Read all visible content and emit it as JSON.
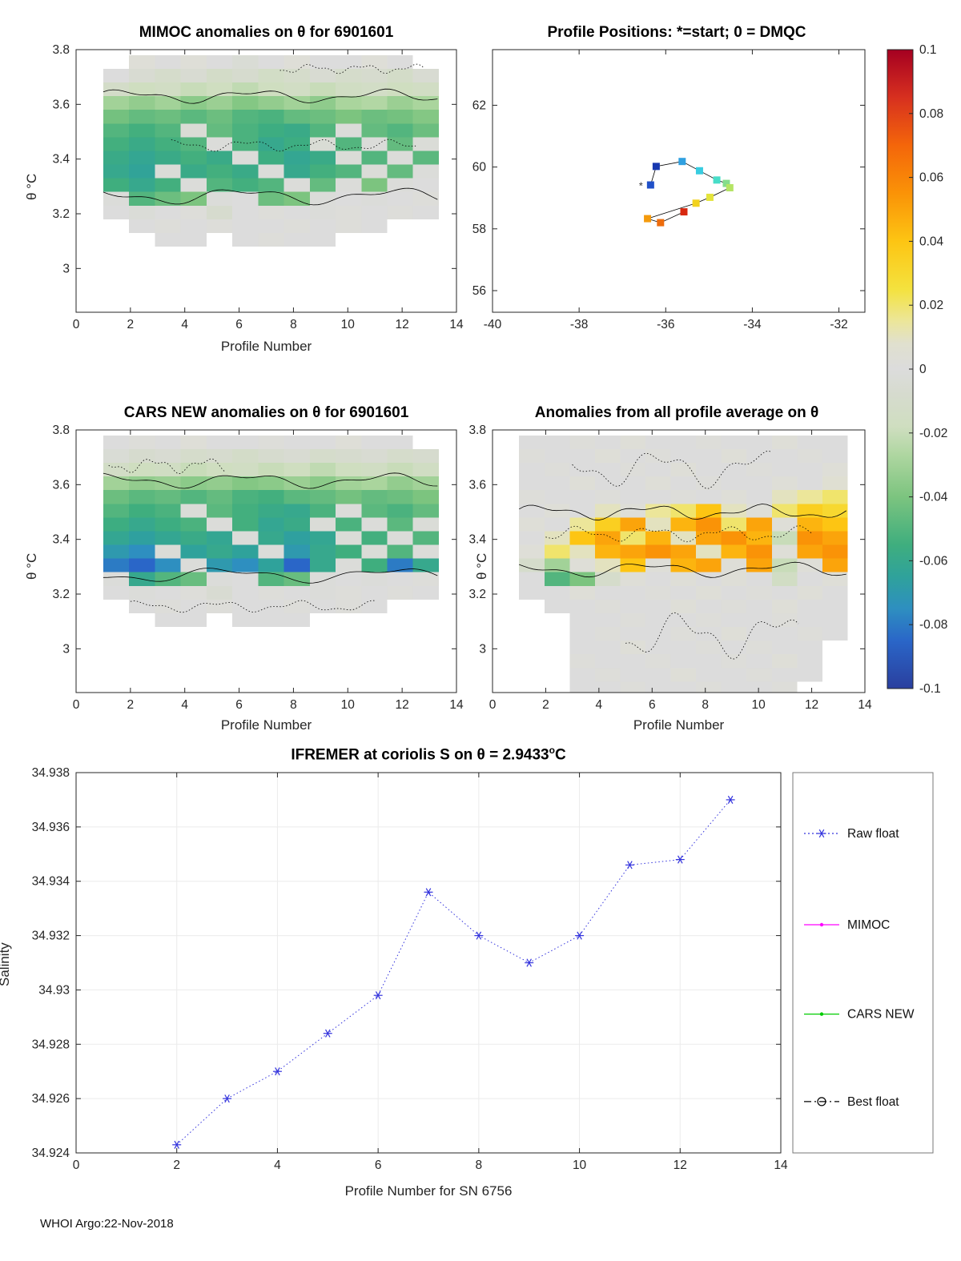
{
  "page": {
    "footer": "WHOI Argo:22-Nov-2018"
  },
  "colorbar": {
    "min": -0.1,
    "max": 0.1,
    "tick_values": [
      0.1,
      0.08,
      0.06,
      0.04,
      0.02,
      0,
      -0.02,
      -0.04,
      -0.06,
      -0.08,
      -0.1
    ],
    "tick_labels": [
      "0.1",
      "0.08",
      "0.06",
      "0.04",
      "0.02",
      "0",
      "-0.02",
      "-0.04",
      "-0.06",
      "-0.08",
      "-0.1"
    ],
    "stops": [
      [
        -0.1,
        "#2a3f9e"
      ],
      [
        -0.085,
        "#2a66c8"
      ],
      [
        -0.075,
        "#2e8fc0"
      ],
      [
        -0.065,
        "#2fa29b"
      ],
      [
        -0.055,
        "#3fae7e"
      ],
      [
        -0.04,
        "#7cc47f"
      ],
      [
        -0.027,
        "#aed6a0"
      ],
      [
        -0.018,
        "#cfdec0"
      ],
      [
        -0.008,
        "#d6dbce"
      ],
      [
        0,
        "#dcdcdc"
      ],
      [
        0.008,
        "#e0e0ce"
      ],
      [
        0.015,
        "#ece69a"
      ],
      [
        0.025,
        "#f4e23e"
      ],
      [
        0.04,
        "#fdc513"
      ],
      [
        0.055,
        "#fa9307"
      ],
      [
        0.07,
        "#f4660a"
      ],
      [
        0.085,
        "#d7301f"
      ],
      [
        0.1,
        "#a50021"
      ]
    ]
  },
  "chart_data": [
    {
      "id": "mimoc",
      "type": "heatmap",
      "title": "MIMOC anomalies on θ  for 6901601",
      "xlabel": "Profile Number",
      "ylabel": "θ °C",
      "xlim": [
        0,
        14
      ],
      "ylim": [
        2.84,
        3.8
      ],
      "xticks": [
        0,
        2,
        4,
        6,
        8,
        10,
        12,
        14
      ],
      "xticklabels": [
        "0",
        "2",
        "4",
        "6",
        "8",
        "10",
        "12",
        "14"
      ],
      "yticks": [
        3,
        3.2,
        3.4,
        3.6,
        3.8
      ],
      "yticklabels": [
        "3",
        "3.2",
        "3.4",
        "3.6",
        "3.8"
      ],
      "y_top": 3.78,
      "cell_h": 0.05,
      "x_start": 1.0,
      "cell_w": 0.95,
      "values": [
        [
          null,
          0.003,
          0,
          0.003,
          0,
          -0.004,
          0,
          0.003,
          0,
          0,
          0.003,
          0,
          null
        ],
        [
          0,
          -0.006,
          -0.01,
          -0.006,
          -0.012,
          -0.008,
          -0.014,
          -0.01,
          -0.006,
          -0.01,
          -0.008,
          -0.012,
          -0.006
        ],
        [
          -0.012,
          -0.018,
          -0.015,
          -0.02,
          -0.018,
          -0.022,
          -0.018,
          -0.015,
          -0.02,
          -0.016,
          -0.014,
          -0.018,
          -0.015
        ],
        [
          -0.03,
          -0.034,
          -0.03,
          -0.036,
          -0.032,
          -0.038,
          -0.034,
          -0.03,
          -0.035,
          -0.028,
          -0.026,
          -0.032,
          -0.028
        ],
        [
          -0.042,
          -0.046,
          -0.044,
          -0.048,
          -0.044,
          -0.05,
          -0.052,
          -0.046,
          -0.044,
          -0.04,
          -0.044,
          -0.042,
          -0.038
        ],
        [
          -0.05,
          -0.054,
          -0.05,
          -0.004,
          -0.046,
          -0.052,
          -0.056,
          -0.058,
          -0.05,
          -0.002,
          -0.046,
          -0.05,
          -0.044
        ],
        [
          -0.054,
          -0.058,
          -0.054,
          -0.05,
          -0.002,
          -0.052,
          -0.06,
          -0.056,
          -0.004,
          -0.05,
          -0.002,
          -0.046,
          -0.003
        ],
        [
          -0.058,
          -0.062,
          -0.058,
          -0.054,
          -0.058,
          -0.002,
          -0.056,
          -0.062,
          -0.058,
          -0.003,
          -0.05,
          -0.002,
          -0.048
        ],
        [
          -0.06,
          -0.064,
          -0.003,
          -0.058,
          -0.054,
          -0.058,
          -0.002,
          -0.06,
          -0.054,
          -0.05,
          -0.003,
          -0.046,
          -0.002
        ],
        [
          -0.055,
          -0.06,
          -0.054,
          -0.002,
          -0.05,
          -0.054,
          -0.05,
          -0.002,
          -0.046,
          -0.002,
          -0.04,
          -0.002,
          0
        ],
        [
          -0.002,
          -0.05,
          -0.044,
          -0.04,
          -0.002,
          0,
          -0.044,
          -0.04,
          -0.002,
          0,
          -0.002,
          0,
          0.002
        ],
        [
          0,
          -0.003,
          0,
          0.002,
          -0.008,
          0,
          0.002,
          0,
          -0.002,
          0.002,
          0,
          0.002,
          0
        ],
        [
          null,
          0,
          0.002,
          0,
          0.002,
          0,
          0,
          0.002,
          0,
          0.002,
          0,
          null,
          null
        ],
        [
          null,
          null,
          0,
          0,
          null,
          0,
          0.002,
          0,
          0,
          null,
          null,
          null,
          null
        ]
      ]
    },
    {
      "id": "positions",
      "type": "track",
      "title": "Profile Positions: *=start; 0 = DMQC",
      "xlim": [
        -40,
        -31.4
      ],
      "ylim": [
        55.3,
        63.8
      ],
      "xticks": [
        -40,
        -38,
        -36,
        -34,
        -32
      ],
      "xticklabels": [
        "-40",
        "-38",
        "-36",
        "-34",
        "-32"
      ],
      "yticks": [
        56,
        58,
        60,
        62
      ],
      "yticklabels": [
        "56",
        "58",
        "60",
        "62"
      ],
      "start": {
        "lon": -36.62,
        "lat": 59.38,
        "label": "*"
      },
      "points": [
        {
          "lon": -36.35,
          "lat": 59.42,
          "c": "#2050c8"
        },
        {
          "lon": -36.22,
          "lat": 60.02,
          "c": "#1838b0"
        },
        {
          "lon": -35.62,
          "lat": 60.18,
          "c": "#30a0e0"
        },
        {
          "lon": -35.22,
          "lat": 59.88,
          "c": "#38cce0"
        },
        {
          "lon": -34.82,
          "lat": 59.58,
          "c": "#48ddc8"
        },
        {
          "lon": -34.6,
          "lat": 59.47,
          "c": "#84dd8c"
        },
        {
          "lon": -34.52,
          "lat": 59.33,
          "c": "#b4e464"
        },
        {
          "lon": -34.98,
          "lat": 59.02,
          "c": "#e4e43c"
        },
        {
          "lon": -35.3,
          "lat": 58.83,
          "c": "#f2d21e"
        },
        {
          "lon": -36.42,
          "lat": 58.33,
          "c": "#f49a0c"
        },
        {
          "lon": -36.12,
          "lat": 58.2,
          "c": "#ee6c0c"
        },
        {
          "lon": -35.58,
          "lat": 58.55,
          "c": "#d8280f"
        }
      ]
    },
    {
      "id": "cars",
      "type": "heatmap",
      "title": "CARS NEW anomalies on θ for 6901601",
      "xlabel": "Profile Number",
      "ylabel": "θ °C",
      "xlim": [
        0,
        14
      ],
      "ylim": [
        2.84,
        3.8
      ],
      "xticks": [
        0,
        2,
        4,
        6,
        8,
        10,
        12,
        14
      ],
      "xticklabels": [
        "0",
        "2",
        "4",
        "6",
        "8",
        "10",
        "12",
        "14"
      ],
      "yticks": [
        3,
        3.2,
        3.4,
        3.6,
        3.8
      ],
      "yticklabels": [
        "3",
        "3.2",
        "3.4",
        "3.6",
        "3.8"
      ],
      "y_top": 3.78,
      "cell_h": 0.05,
      "x_start": 1.0,
      "cell_w": 0.95,
      "values": [
        [
          0,
          0.002,
          0,
          0.003,
          0,
          0,
          0.002,
          0,
          0,
          0.003,
          0,
          0,
          null
        ],
        [
          -0.004,
          -0.008,
          -0.006,
          -0.01,
          -0.008,
          -0.012,
          -0.008,
          -0.006,
          -0.01,
          -0.008,
          -0.006,
          -0.01,
          -0.008
        ],
        [
          -0.014,
          -0.018,
          -0.016,
          -0.02,
          -0.018,
          -0.016,
          -0.02,
          -0.018,
          -0.022,
          -0.018,
          -0.016,
          -0.02,
          -0.016
        ],
        [
          -0.03,
          -0.034,
          -0.032,
          -0.036,
          -0.034,
          -0.038,
          -0.036,
          -0.032,
          -0.036,
          -0.03,
          -0.028,
          -0.034,
          -0.03
        ],
        [
          -0.044,
          -0.048,
          -0.046,
          -0.05,
          -0.046,
          -0.052,
          -0.054,
          -0.048,
          -0.046,
          -0.042,
          -0.046,
          -0.044,
          -0.04
        ],
        [
          -0.05,
          -0.055,
          -0.052,
          -0.003,
          -0.048,
          -0.054,
          -0.058,
          -0.06,
          -0.052,
          -0.002,
          -0.048,
          -0.052,
          -0.046
        ],
        [
          -0.056,
          -0.06,
          -0.056,
          -0.052,
          -0.002,
          -0.054,
          -0.062,
          -0.058,
          -0.003,
          -0.052,
          -0.002,
          -0.048,
          -0.003
        ],
        [
          -0.062,
          -0.066,
          -0.062,
          -0.058,
          -0.062,
          -0.002,
          -0.06,
          -0.066,
          -0.062,
          -0.003,
          -0.054,
          -0.002,
          -0.05
        ],
        [
          -0.07,
          -0.075,
          -0.003,
          -0.065,
          -0.06,
          -0.065,
          -0.002,
          -0.07,
          -0.06,
          -0.055,
          -0.003,
          -0.05,
          -0.002
        ],
        [
          -0.08,
          -0.085,
          -0.075,
          -0.002,
          -0.07,
          -0.075,
          -0.065,
          -0.085,
          -0.06,
          -0.002,
          -0.055,
          -0.08,
          -0.06
        ],
        [
          -0.002,
          -0.06,
          -0.05,
          -0.045,
          -0.002,
          0,
          -0.05,
          -0.045,
          -0.002,
          0,
          -0.002,
          0,
          0.002
        ],
        [
          0,
          -0.002,
          0,
          0.002,
          -0.006,
          0,
          0.002,
          0,
          -0.002,
          0.002,
          0,
          0.002,
          0
        ],
        [
          null,
          0,
          0.002,
          0,
          0.002,
          0,
          0,
          0.002,
          0,
          0.002,
          0,
          null,
          null
        ],
        [
          null,
          null,
          0,
          0,
          null,
          0,
          0,
          0,
          null,
          null,
          null,
          null,
          null
        ]
      ]
    },
    {
      "id": "anomaly",
      "type": "heatmap",
      "title": "Anomalies from all profile average on θ",
      "xlabel": "Profile Number",
      "ylabel": "θ °C",
      "xlim": [
        0,
        14
      ],
      "ylim": [
        2.84,
        3.8
      ],
      "xticks": [
        0,
        2,
        4,
        6,
        8,
        10,
        12,
        14
      ],
      "xticklabels": [
        "0",
        "2",
        "4",
        "6",
        "8",
        "10",
        "12",
        "14"
      ],
      "yticks": [
        3,
        3.2,
        3.4,
        3.6,
        3.8
      ],
      "yticklabels": [
        "3",
        "3.2",
        "3.4",
        "3.6",
        "3.8"
      ],
      "y_top": 3.78,
      "cell_h": 0.05,
      "x_start": 1.0,
      "cell_w": 0.95,
      "values": [
        [
          0,
          0,
          0.002,
          0,
          0.003,
          0,
          0,
          0.002,
          0,
          0,
          0.003,
          0,
          0
        ],
        [
          0.002,
          0,
          0,
          0.003,
          0,
          0.002,
          0,
          0,
          0.003,
          0,
          0,
          0.002,
          0
        ],
        [
          0,
          0.002,
          0,
          0,
          0.002,
          0,
          0.003,
          0,
          0,
          0.002,
          0,
          0,
          0.003
        ],
        [
          0,
          0,
          0.003,
          0,
          0,
          0.003,
          0,
          0.002,
          0,
          0,
          0.003,
          0,
          0.006
        ],
        [
          0.002,
          0,
          0,
          0.002,
          0,
          0,
          0.002,
          0,
          0.003,
          0,
          0.01,
          0.015,
          0.02
        ],
        [
          0,
          0.003,
          0,
          0.01,
          0.003,
          0.015,
          0.02,
          0.04,
          0.01,
          0.003,
          0.02,
          0.035,
          0.03
        ],
        [
          0.003,
          0,
          0.015,
          0.035,
          0.05,
          0.01,
          0.045,
          0.055,
          0.02,
          0.05,
          0.003,
          0.045,
          0.04
        ],
        [
          0,
          0.01,
          0.04,
          0.05,
          0.02,
          0.045,
          0.01,
          0.05,
          0.055,
          0.045,
          -0.02,
          0.055,
          0.05
        ],
        [
          0.003,
          0.02,
          0.01,
          0.045,
          0.05,
          0.055,
          0.05,
          0.01,
          0.045,
          0.055,
          0.003,
          0.05,
          0.055
        ],
        [
          -0.01,
          -0.03,
          0.003,
          0.01,
          0.04,
          0.003,
          0.045,
          0.05,
          0.003,
          0.05,
          -0.02,
          0.003,
          0.05
        ],
        [
          0,
          -0.05,
          -0.04,
          -0.01,
          0.003,
          0,
          0.003,
          0,
          0.003,
          0,
          -0.015,
          0,
          0.003
        ],
        [
          0,
          0,
          0.003,
          0,
          0,
          0.002,
          0,
          0.003,
          0,
          0.002,
          0,
          0.003,
          0
        ],
        [
          null,
          0,
          0,
          0.002,
          0,
          0,
          0.003,
          0,
          0.002,
          0,
          0.003,
          0,
          0
        ],
        [
          null,
          null,
          0,
          0,
          0.002,
          0,
          0,
          0.002,
          0,
          0,
          0.002,
          0,
          0
        ],
        [
          null,
          null,
          0,
          0.002,
          0,
          0,
          0.002,
          0,
          0.003,
          0,
          0,
          0.002,
          0
        ],
        [
          null,
          null,
          0,
          0,
          0.003,
          0,
          0,
          0.002,
          0,
          0.002,
          0,
          0,
          null
        ],
        [
          null,
          null,
          0.002,
          0,
          0,
          0.002,
          0,
          0,
          0.002,
          0,
          0.003,
          0,
          null
        ],
        [
          null,
          null,
          0,
          0.002,
          0,
          0,
          0.003,
          0,
          0,
          0.002,
          0,
          0,
          null
        ],
        [
          null,
          null,
          0,
          0,
          0.002,
          0,
          0,
          0.002,
          0,
          0,
          0.002,
          null,
          null
        ]
      ]
    },
    {
      "id": "salinity",
      "type": "line",
      "title": "IFREMER at coriolis S on θ = 2.9433°C",
      "title_pre": "IFREMER at coriolis S on θ = 2.9433",
      "title_sup": "o",
      "title_post": "C",
      "xlabel": "Profile Number for SN 6756",
      "ylabel": "Salinity",
      "xlim": [
        0,
        14
      ],
      "ylim": [
        34.924,
        34.938
      ],
      "xticks": [
        0,
        2,
        4,
        6,
        8,
        10,
        12,
        14
      ],
      "xticklabels": [
        "0",
        "2",
        "4",
        "6",
        "8",
        "10",
        "12",
        "14"
      ],
      "yticks": [
        34.924,
        34.926,
        34.928,
        34.93,
        34.932,
        34.934,
        34.936,
        34.938
      ],
      "yticklabels": [
        "34.924",
        "34.926",
        "34.928",
        "34.93",
        "34.932",
        "34.934",
        "34.936",
        "34.938"
      ],
      "grid": true,
      "series": [
        {
          "name": "Raw float",
          "color": "#3333dd",
          "line": "dotted",
          "marker": "star",
          "x": [
            2,
            3,
            4,
            5,
            6,
            7,
            8,
            9,
            10,
            11,
            12,
            13
          ],
          "y": [
            34.9243,
            34.926,
            34.927,
            34.9284,
            34.9298,
            34.9336,
            34.932,
            34.931,
            34.932,
            34.9346,
            34.9348,
            34.937
          ]
        }
      ],
      "legend": [
        {
          "label": "Raw float",
          "color": "#3333dd",
          "line": "dotted",
          "marker": "star"
        },
        {
          "label": "MIMOC",
          "color": "#ff00ff",
          "line": "solid",
          "marker": "dot"
        },
        {
          "label": "CARS NEW",
          "color": "#00cc00",
          "line": "solid",
          "marker": "dot"
        },
        {
          "label": "Best float",
          "color": "#000000",
          "line": "dashdot",
          "marker": "circle"
        }
      ]
    }
  ]
}
